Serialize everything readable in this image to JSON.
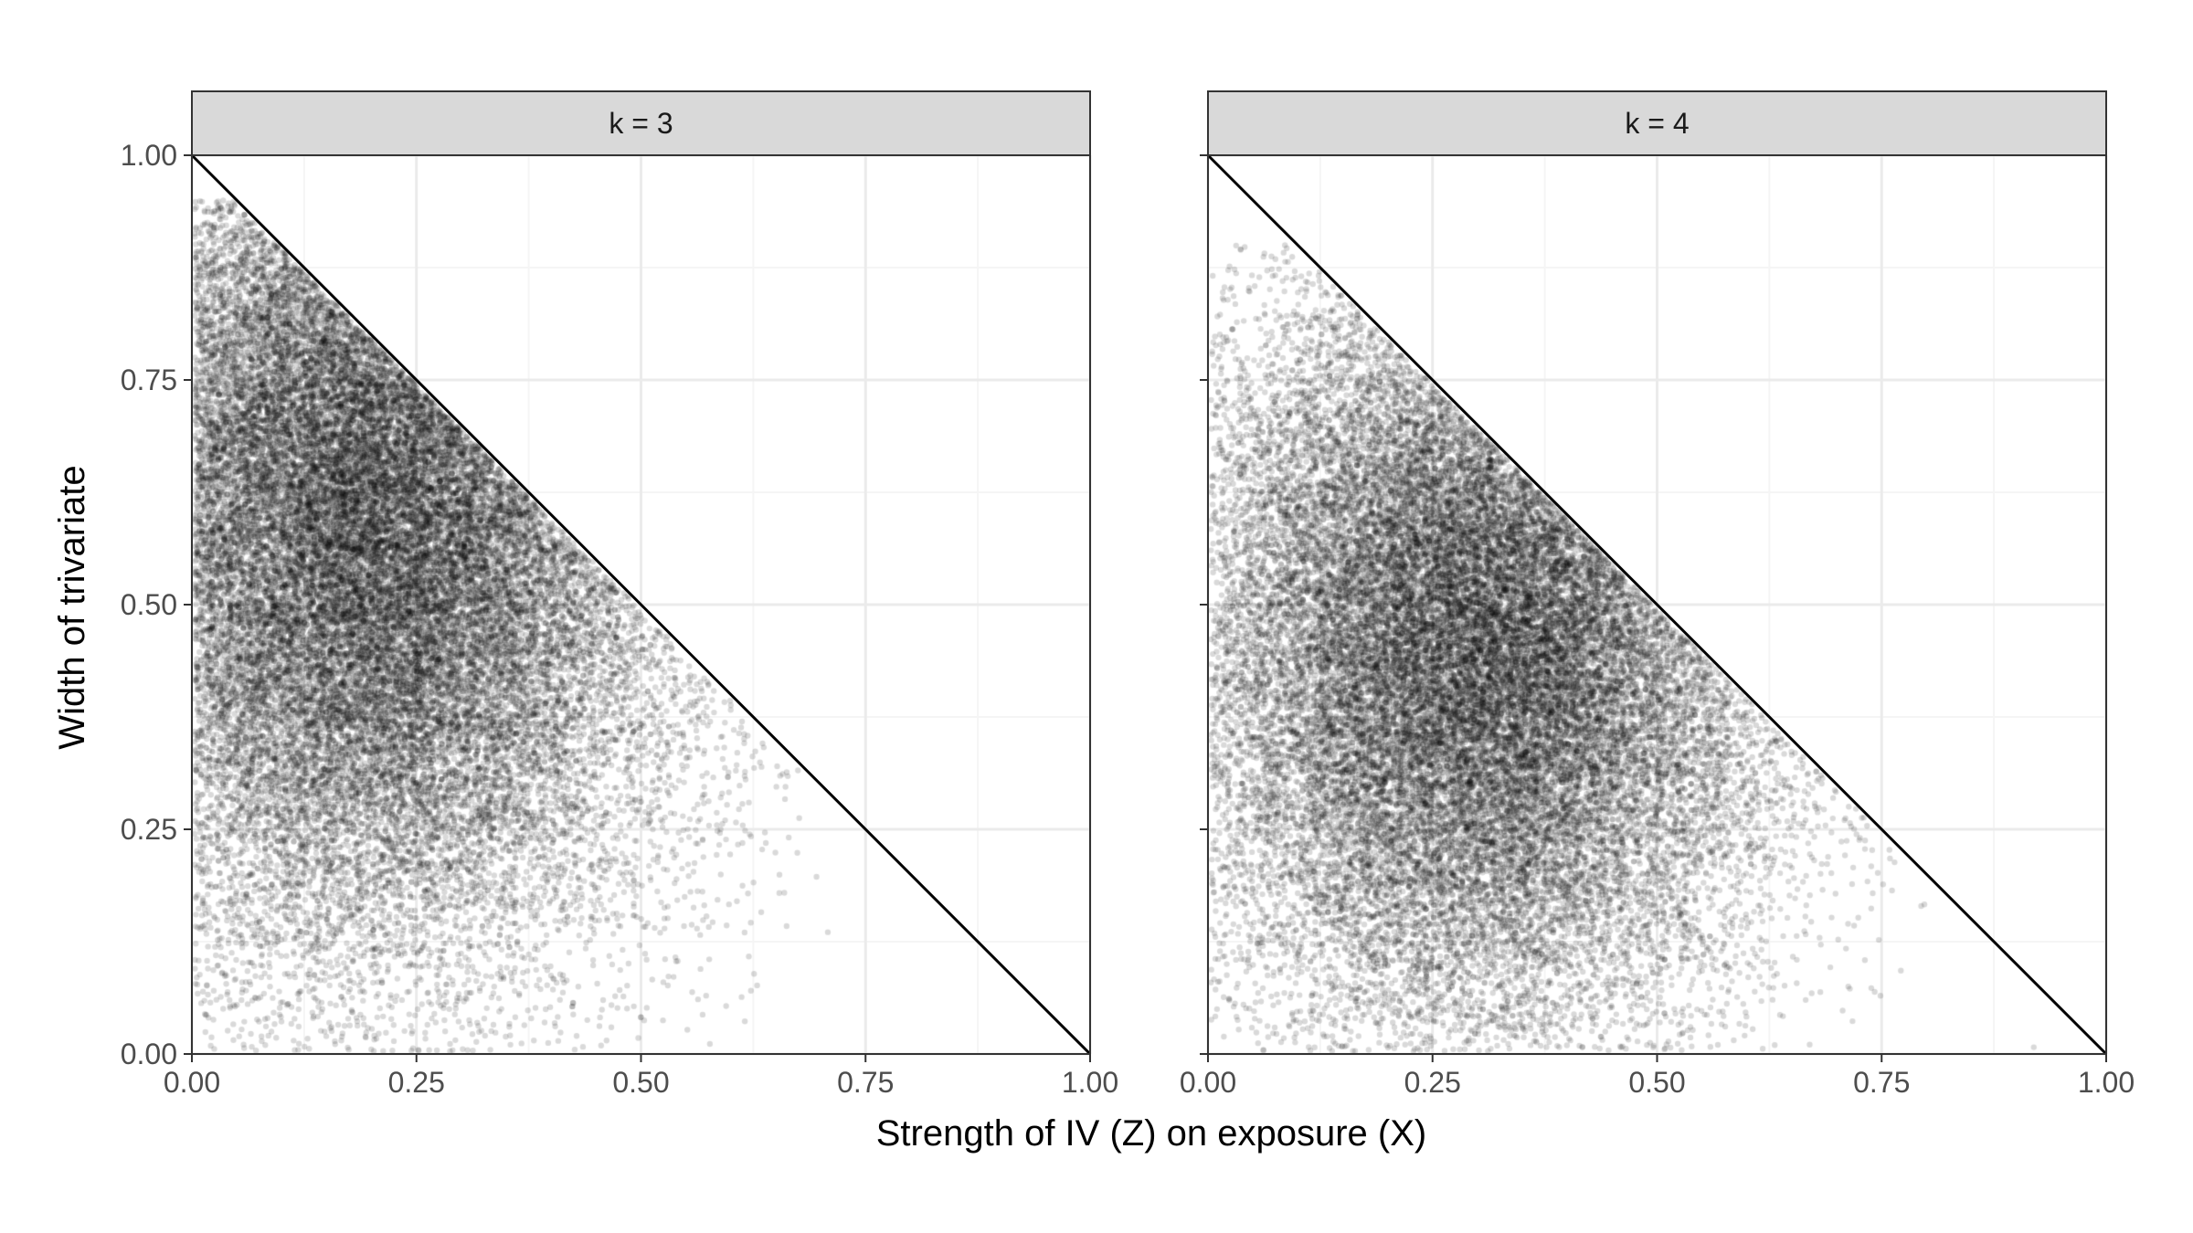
{
  "figure": {
    "xlabel": "Strength of IV (Z) on exposure (X)",
    "ylabel": "Width of trivariate"
  },
  "colors": {
    "points": "#000000",
    "reference_line": "#000000",
    "strip_fill": "#d9d9d9",
    "grid_major": "#ebebeb",
    "grid_minor": "#f5f5f5",
    "panel_border": "#333333"
  },
  "chart_data": [
    {
      "type": "scatter",
      "facet_label": "k = 3",
      "xlim": [
        0,
        1
      ],
      "ylim": [
        0,
        1
      ],
      "x_ticks": [
        "0.00",
        "0.25",
        "0.50",
        "0.75",
        "1.00"
      ],
      "y_ticks": [
        "0.00",
        "0.25",
        "0.50",
        "0.75",
        "1.00"
      ],
      "grid": true,
      "point_alpha": 0.15,
      "reference_line": {
        "x": [
          0,
          1
        ],
        "y": [
          1,
          0
        ]
      },
      "density_summary": {
        "approx_point_count": 30000,
        "region": "triangle below line y = 1 - x",
        "x_mode": 0.2,
        "y_mode": 0.6,
        "x_range": [
          0.0,
          0.9
        ],
        "y_range": [
          0.0,
          0.95
        ]
      }
    },
    {
      "type": "scatter",
      "facet_label": "k = 4",
      "xlim": [
        0,
        1
      ],
      "ylim": [
        0,
        1
      ],
      "x_ticks": [
        "0.00",
        "0.25",
        "0.50",
        "0.75",
        "1.00"
      ],
      "y_ticks": [
        "0.00",
        "0.25",
        "0.50",
        "0.75",
        "1.00"
      ],
      "grid": true,
      "point_alpha": 0.15,
      "reference_line": {
        "x": [
          0,
          1
        ],
        "y": [
          1,
          0
        ]
      },
      "density_summary": {
        "approx_point_count": 30000,
        "region": "triangle below line y = 1 - x",
        "x_mode": 0.3,
        "y_mode": 0.45,
        "x_range": [
          0.0,
          0.92
        ],
        "y_range": [
          0.0,
          0.9
        ]
      }
    }
  ]
}
